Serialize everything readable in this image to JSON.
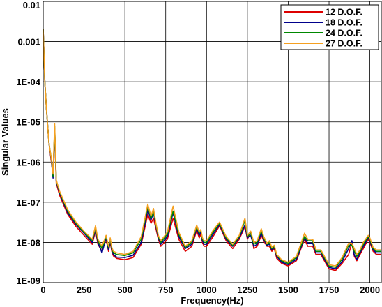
{
  "chart_data": {
    "type": "line",
    "xlabel": "Frequency(Hz)",
    "ylabel": "Singular Values",
    "xlim": [
      0,
      2070
    ],
    "ylim": [
      1e-09,
      0.01
    ],
    "y_scale": "log",
    "x_ticks": [
      0,
      250,
      500,
      750,
      1000,
      1250,
      1500,
      1750,
      2000
    ],
    "x_tick_labels": [
      "0",
      "250",
      "500",
      "750",
      "1000",
      "1250",
      "1500",
      "1750",
      "2000"
    ],
    "y_ticks": [
      1e-09,
      1e-08,
      1e-07,
      1e-06,
      1e-05,
      0.0001,
      0.001,
      0.01
    ],
    "y_tick_labels": [
      "1E-09",
      "1E-08",
      "1E-07",
      "1E-06",
      "1E-05",
      "1E-04",
      "0.001",
      "0.01"
    ],
    "grid": true,
    "legend_position": "top-right",
    "series": [
      {
        "name": "12 D.O.F.",
        "color": "#dd0000",
        "x": [
          0,
          10,
          20,
          35,
          50,
          60,
          70,
          80,
          100,
          150,
          200,
          250,
          300,
          320,
          335,
          360,
          385,
          400,
          410,
          420,
          430,
          450,
          500,
          550,
          600,
          640,
          660,
          675,
          690,
          705,
          720,
          760,
          795,
          830,
          870,
          910,
          940,
          955,
          965,
          975,
          985,
          1000,
          1040,
          1080,
          1120,
          1160,
          1200,
          1235,
          1250,
          1270,
          1290,
          1310,
          1335,
          1350,
          1370,
          1385,
          1400,
          1415,
          1430,
          1460,
          1500,
          1550,
          1600,
          1620,
          1650,
          1670,
          1700,
          1750,
          1790,
          1830,
          1870,
          1890,
          1905,
          1920,
          1940,
          1960,
          1990,
          2000,
          2020,
          2040,
          2070
        ],
        "y": [
          0.002,
          0.0001,
          2e-05,
          3e-06,
          1e-06,
          5e-07,
          6e-06,
          3e-07,
          1.5e-07,
          5e-08,
          2.5e-08,
          1.5e-08,
          9e-09,
          2e-08,
          9e-09,
          6e-09,
          1.2e-08,
          6e-09,
          1e-08,
          6e-09,
          4.6e-09,
          4e-09,
          3.7e-09,
          4.2e-09,
          9e-09,
          5e-08,
          3e-08,
          4e-08,
          2.2e-08,
          1.2e-08,
          8e-09,
          1.2e-08,
          4e-08,
          1.2e-08,
          6e-09,
          8e-09,
          2e-08,
          1.3e-08,
          1.6e-08,
          1e-08,
          8e-09,
          8e-09,
          1.4e-08,
          2.6e-08,
          1.1e-08,
          7e-09,
          1.2e-08,
          2.5e-08,
          1.2e-08,
          1.8e-08,
          7e-09,
          8e-09,
          1.5e-08,
          1.1e-08,
          8e-09,
          8e-09,
          6e-09,
          7e-09,
          4e-09,
          3e-09,
          2.6e-09,
          3.5e-09,
          1.2e-08,
          8e-09,
          8e-09,
          5e-09,
          5e-09,
          2.2e-09,
          2e-09,
          3e-09,
          5e-09,
          1e-08,
          4.5e-09,
          3.5e-09,
          5e-09,
          7e-09,
          1.2e-08,
          1e-08,
          6e-09,
          5e-09,
          5e-09
        ]
      },
      {
        "name": "18 D.O.F.",
        "color": "#00008b",
        "x": [
          0,
          10,
          20,
          35,
          50,
          60,
          70,
          80,
          100,
          150,
          200,
          250,
          300,
          320,
          335,
          360,
          385,
          400,
          410,
          420,
          430,
          450,
          500,
          550,
          600,
          640,
          660,
          675,
          690,
          705,
          720,
          760,
          795,
          830,
          870,
          910,
          940,
          955,
          965,
          975,
          985,
          1000,
          1040,
          1080,
          1120,
          1160,
          1200,
          1235,
          1250,
          1270,
          1290,
          1310,
          1335,
          1350,
          1370,
          1385,
          1400,
          1415,
          1430,
          1460,
          1500,
          1550,
          1600,
          1620,
          1650,
          1670,
          1700,
          1750,
          1790,
          1830,
          1870,
          1890,
          1905,
          1920,
          1940,
          1960,
          1990,
          2000,
          2020,
          2040,
          2070
        ],
        "y": [
          0.002,
          0.0001,
          2e-05,
          3e-06,
          1.1e-06,
          4e-07,
          7e-06,
          3.3e-07,
          1.7e-07,
          5.5e-08,
          2.8e-08,
          1.7e-08,
          1e-08,
          2.2e-08,
          1e-08,
          5.5e-09,
          1.3e-08,
          6.5e-09,
          1.1e-08,
          6.5e-09,
          5e-09,
          4.3e-09,
          4.2e-09,
          4.8e-09,
          1e-08,
          6.5e-08,
          3.6e-08,
          5.5e-08,
          2.6e-08,
          1.3e-08,
          9e-09,
          1.4e-08,
          5.5e-08,
          1.4e-08,
          7e-09,
          9e-09,
          2.3e-08,
          1.5e-08,
          1.8e-08,
          1.1e-08,
          9e-09,
          9e-09,
          1.6e-08,
          2.8e-08,
          1.2e-08,
          8e-09,
          1.3e-08,
          2.7e-08,
          1.3e-08,
          1.5e-08,
          8e-09,
          9e-09,
          1.7e-08,
          1.2e-08,
          8.5e-09,
          9e-09,
          6.5e-09,
          7.5e-09,
          4.5e-09,
          3.2e-09,
          2.8e-09,
          3.8e-09,
          1.3e-08,
          9.5e-09,
          9.5e-09,
          5.5e-09,
          5.5e-09,
          2.4e-09,
          2.2e-09,
          3.3e-09,
          7e-09,
          1.1e-08,
          4.8e-09,
          3.8e-09,
          5.5e-09,
          8e-09,
          1.3e-08,
          1.1e-08,
          6.5e-09,
          5.5e-09,
          5.5e-09
        ]
      },
      {
        "name": "24 D.O.F.",
        "color": "#008800",
        "x": [
          0,
          10,
          20,
          35,
          50,
          60,
          70,
          80,
          100,
          150,
          200,
          250,
          300,
          320,
          335,
          360,
          385,
          400,
          410,
          420,
          430,
          450,
          500,
          550,
          600,
          640,
          660,
          675,
          690,
          705,
          720,
          760,
          795,
          830,
          870,
          910,
          940,
          955,
          965,
          975,
          985,
          1000,
          1040,
          1080,
          1120,
          1160,
          1200,
          1235,
          1250,
          1270,
          1290,
          1310,
          1335,
          1350,
          1370,
          1385,
          1400,
          1415,
          1430,
          1460,
          1500,
          1550,
          1600,
          1620,
          1650,
          1670,
          1700,
          1750,
          1790,
          1830,
          1870,
          1890,
          1905,
          1920,
          1940,
          1960,
          1990,
          2000,
          2020,
          2040,
          2070
        ],
        "y": [
          0.002,
          0.0001,
          2e-05,
          3e-06,
          1.2e-06,
          4.5e-07,
          8e-06,
          3.5e-07,
          1.8e-07,
          6e-08,
          3e-08,
          1.8e-08,
          1.1e-08,
          2.4e-08,
          1.1e-08,
          7e-09,
          1.4e-08,
          7.5e-09,
          1.2e-08,
          7e-09,
          5.5e-09,
          5e-09,
          4.7e-09,
          5.5e-09,
          1.2e-08,
          8e-08,
          4e-08,
          6e-08,
          2.8e-08,
          1.4e-08,
          1e-08,
          1.6e-08,
          6e-08,
          1.6e-08,
          7.5e-09,
          1e-08,
          2.5e-08,
          1.7e-08,
          2e-08,
          1.2e-08,
          1e-08,
          1e-08,
          1.8e-08,
          3e-08,
          1.3e-08,
          8.5e-09,
          1.4e-08,
          3.5e-08,
          1.4e-08,
          1.7e-08,
          9e-09,
          1e-08,
          2e-08,
          1.3e-08,
          9e-09,
          1e-08,
          7e-09,
          8e-09,
          4.8e-09,
          3.5e-09,
          3e-09,
          4.2e-09,
          1.4e-08,
          1.1e-08,
          1.1e-08,
          6e-09,
          6e-09,
          2.6e-09,
          2.4e-09,
          3.8e-09,
          8.5e-09,
          8.5e-09,
          6e-09,
          4.5e-09,
          6e-09,
          9e-09,
          1.4e-08,
          1.2e-08,
          7e-09,
          6e-09,
          6e-09
        ]
      },
      {
        "name": "27 D.O.F.",
        "color": "#f5a020",
        "x": [
          0,
          10,
          20,
          35,
          50,
          60,
          70,
          80,
          100,
          150,
          200,
          250,
          300,
          320,
          335,
          360,
          385,
          400,
          410,
          420,
          430,
          450,
          500,
          550,
          600,
          640,
          660,
          675,
          690,
          705,
          720,
          760,
          795,
          830,
          870,
          910,
          940,
          955,
          965,
          975,
          985,
          1000,
          1040,
          1080,
          1120,
          1160,
          1200,
          1235,
          1250,
          1270,
          1290,
          1310,
          1335,
          1350,
          1370,
          1385,
          1400,
          1415,
          1430,
          1460,
          1500,
          1550,
          1600,
          1620,
          1650,
          1670,
          1700,
          1750,
          1790,
          1830,
          1870,
          1890,
          1905,
          1920,
          1940,
          1960,
          1990,
          2000,
          2020,
          2040,
          2070
        ],
        "y": [
          0.002,
          0.0001,
          2e-05,
          3e-06,
          1.2e-06,
          5e-07,
          9e-06,
          3.6e-07,
          1.9e-07,
          6.5e-08,
          3.2e-08,
          1.9e-08,
          1.2e-08,
          2.6e-08,
          1.2e-08,
          8e-09,
          1.5e-08,
          8e-09,
          1.3e-08,
          7.5e-09,
          6e-09,
          5.5e-09,
          5e-09,
          6e-09,
          1.4e-08,
          9e-08,
          4.5e-08,
          7e-08,
          3e-08,
          1.5e-08,
          1.1e-08,
          1.8e-08,
          8e-08,
          1.8e-08,
          8e-09,
          1.1e-08,
          2.7e-08,
          1.8e-08,
          2.1e-08,
          1.3e-08,
          1.1e-08,
          1.1e-08,
          2e-08,
          3.2e-08,
          1.4e-08,
          9e-09,
          1.5e-08,
          4e-08,
          1.5e-08,
          1.9e-08,
          1e-08,
          1.1e-08,
          2.2e-08,
          1.4e-08,
          9.5e-09,
          1.1e-08,
          7.5e-09,
          8.5e-09,
          5e-09,
          3.7e-09,
          3.2e-09,
          4.5e-09,
          1.7e-08,
          1.2e-08,
          1.2e-08,
          6.5e-09,
          6.5e-09,
          2.8e-09,
          2.6e-09,
          4.2e-09,
          9.5e-09,
          9.5e-09,
          7e-09,
          5e-09,
          6.5e-09,
          1e-08,
          1.5e-08,
          1.3e-08,
          7.5e-09,
          6.5e-09,
          6.5e-09
        ]
      }
    ]
  }
}
